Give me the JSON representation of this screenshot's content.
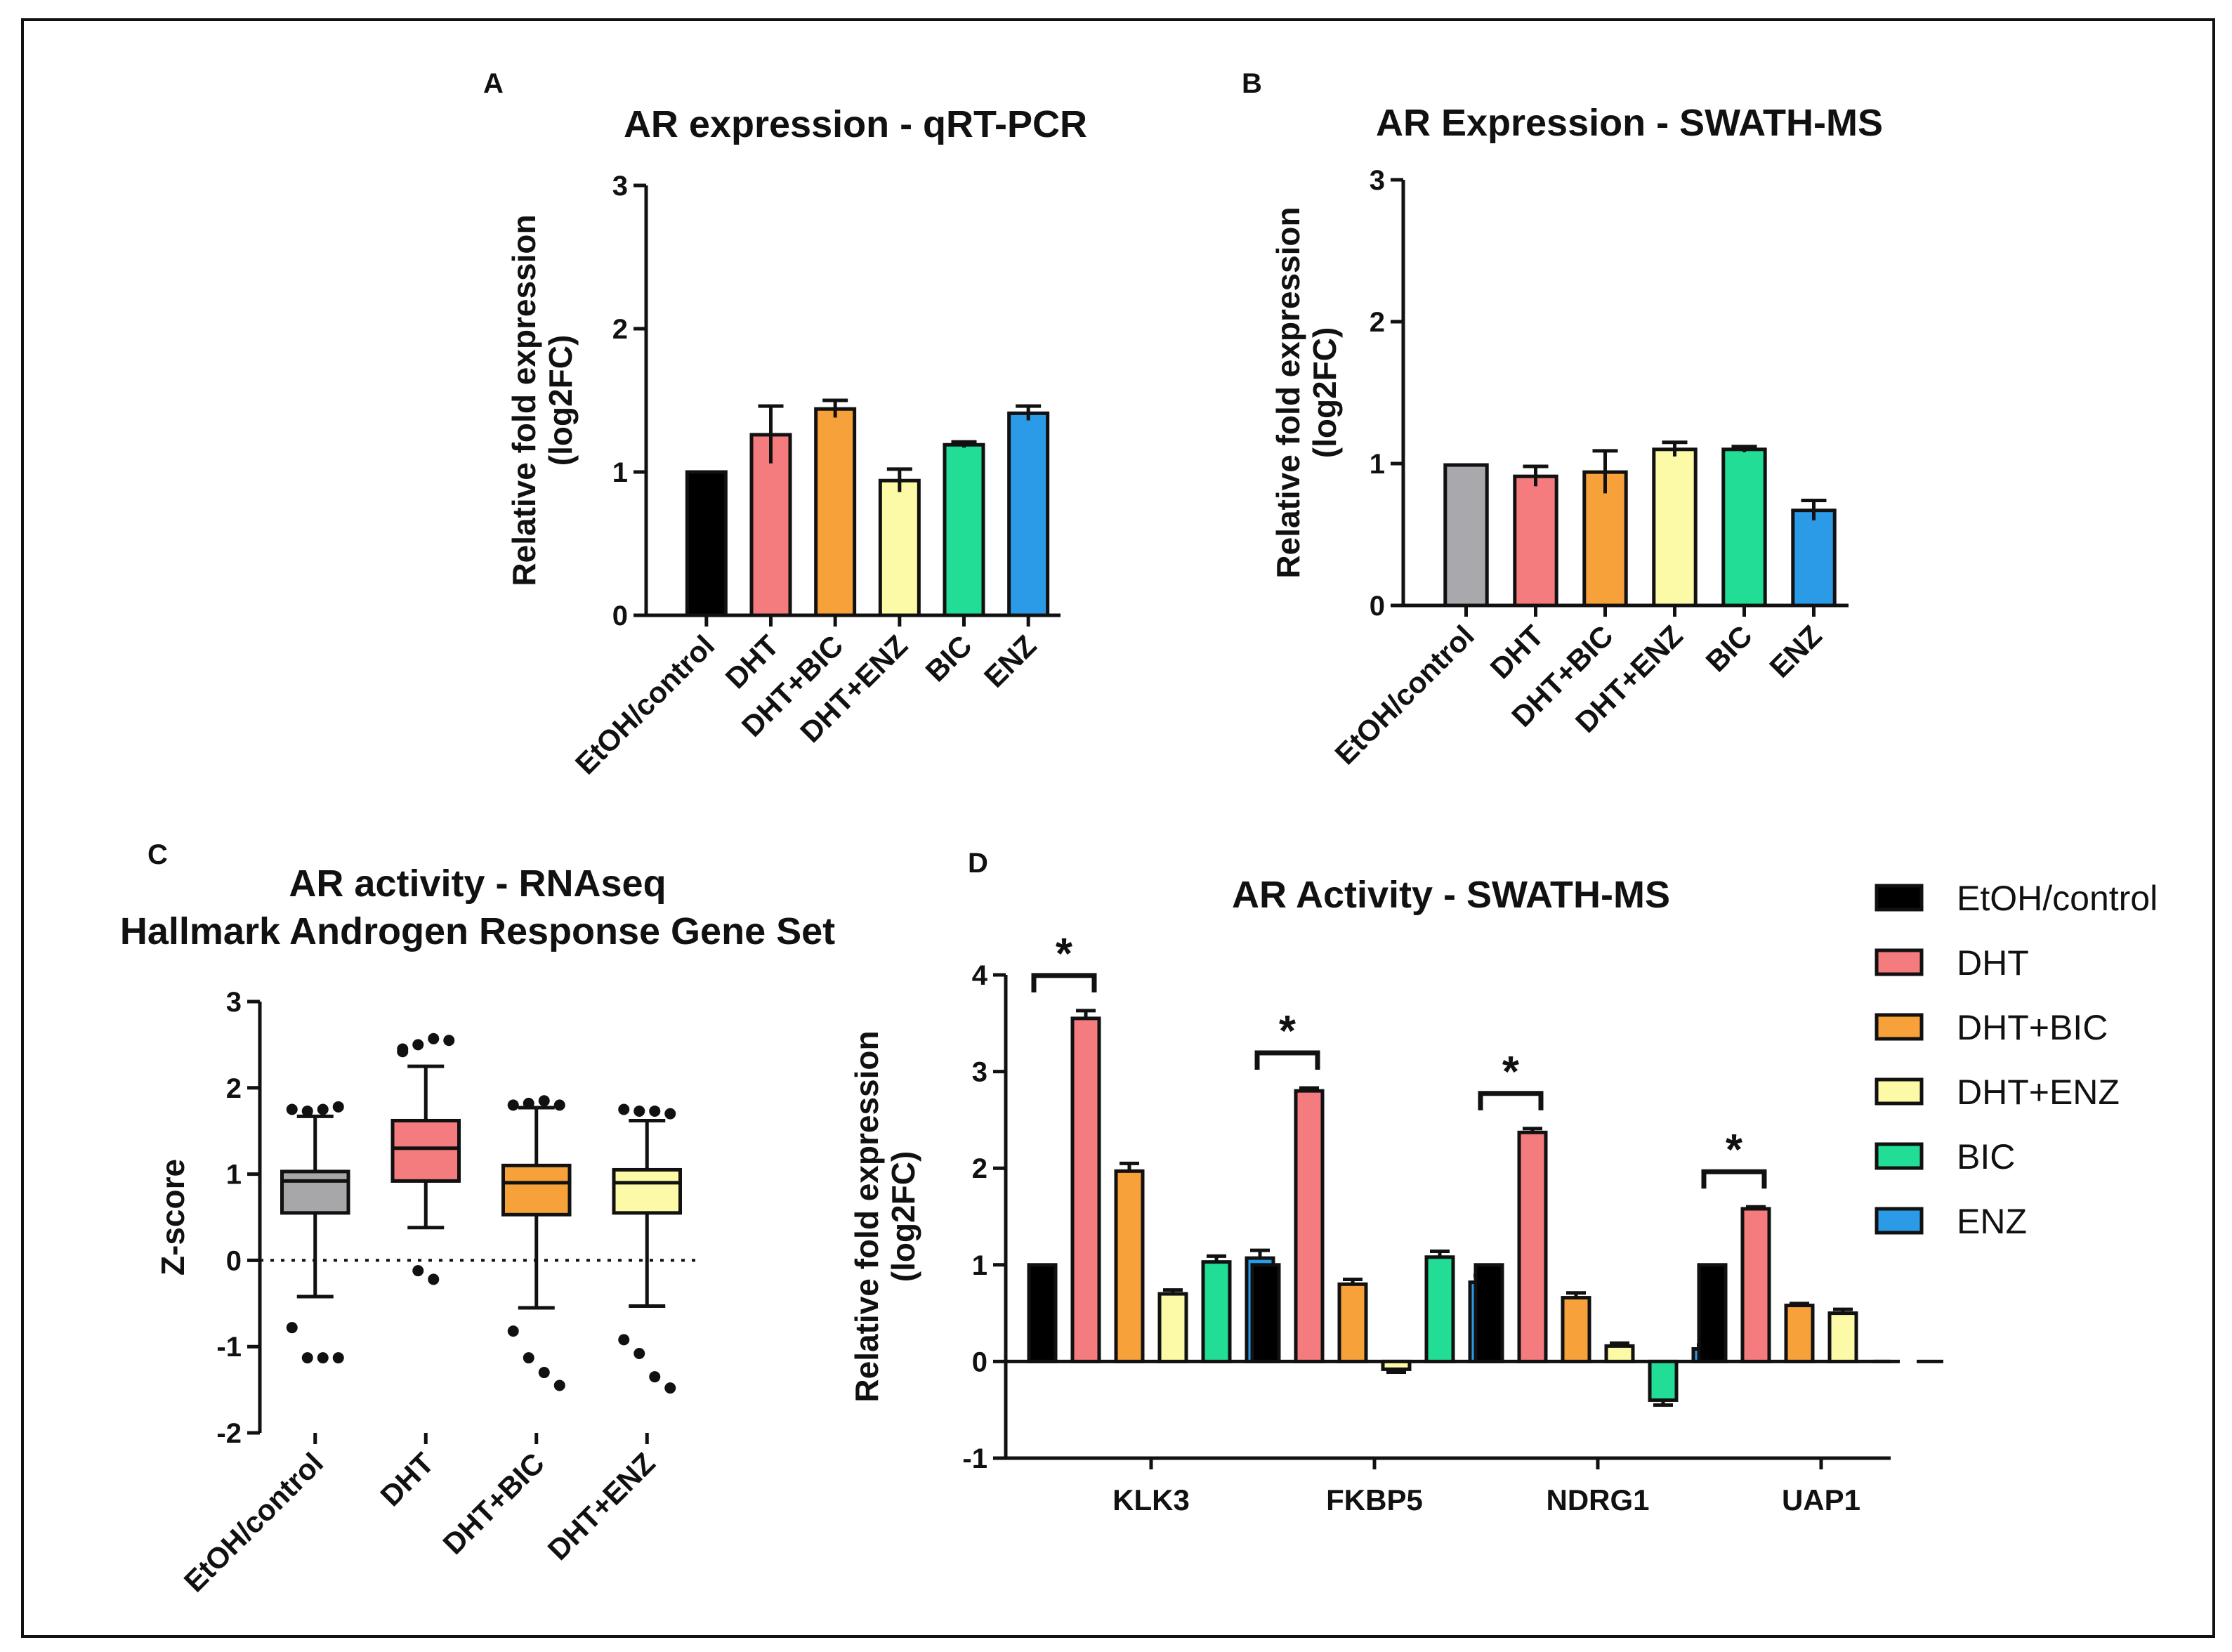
{
  "colors": {
    "EtOH/control": "#000000",
    "EtOH/control_B": "#a8a8ad",
    "DHT": "#f47b7e",
    "DHT+BIC": "#f7a13a",
    "DHT+ENZ": "#fcfaa6",
    "BIC": "#22dd95",
    "ENZ": "#2b9be8",
    "box_control": "#a7a7aa"
  },
  "chart_data": [
    {
      "panel": "A",
      "type": "bar",
      "title": "AR expression - qRT-PCR",
      "ylabel_lines": [
        "Relative fold expression",
        "(log2FC)"
      ],
      "categories": [
        "EtOH/control",
        "DHT",
        "DHT+BIC",
        "DHT+ENZ",
        "BIC",
        "ENZ"
      ],
      "values": [
        1.0,
        1.26,
        1.44,
        0.94,
        1.19,
        1.41
      ],
      "errors": [
        0.0,
        0.2,
        0.06,
        0.08,
        0.02,
        0.05
      ],
      "yticks": [
        0,
        1,
        2,
        3
      ],
      "ylim": [
        0,
        3
      ]
    },
    {
      "panel": "B",
      "type": "bar",
      "title": "AR Expression - SWATH-MS",
      "ylabel_lines": [
        "Relative fold expression",
        "(log2FC)"
      ],
      "categories": [
        "EtOH/control",
        "DHT",
        "DHT+BIC",
        "DHT+ENZ",
        "BIC",
        "ENZ"
      ],
      "values": [
        0.99,
        0.91,
        0.94,
        1.1,
        1.1,
        0.67
      ],
      "errors": [
        0.0,
        0.07,
        0.15,
        0.05,
        0.02,
        0.07
      ],
      "yticks": [
        0,
        1,
        2,
        3
      ],
      "ylim": [
        0,
        3
      ]
    },
    {
      "panel": "C",
      "type": "box",
      "title_lines": [
        "AR activity - RNAseq",
        "Hallmark Androgen Response Gene Set"
      ],
      "ylabel": "Z-score",
      "categories": [
        "EtOH/control",
        "DHT",
        "DHT+BIC",
        "DHT+ENZ"
      ],
      "boxes": [
        {
          "q1": 0.55,
          "median": 0.92,
          "q3": 1.03,
          "wlo": -0.42,
          "whi": 1.67,
          "outliers": [
            1.75,
            1.73,
            1.75,
            1.78,
            -0.78,
            -1.13,
            -1.13,
            -1.13
          ]
        },
        {
          "q1": 0.92,
          "median": 1.3,
          "q3": 1.62,
          "wlo": 0.38,
          "whi": 2.25,
          "outliers": [
            2.42,
            2.5,
            2.57,
            2.55,
            2.45,
            -0.12,
            -0.22
          ]
        },
        {
          "q1": 0.53,
          "median": 0.9,
          "q3": 1.1,
          "wlo": -0.55,
          "whi": 1.77,
          "outliers": [
            1.8,
            1.82,
            1.85,
            1.8,
            -0.82,
            -1.13,
            -1.3,
            -1.45
          ]
        },
        {
          "q1": 0.55,
          "median": 0.9,
          "q3": 1.05,
          "wlo": -0.53,
          "whi": 1.62,
          "outliers": [
            1.75,
            1.73,
            1.73,
            1.7,
            -0.92,
            -1.08,
            -1.35,
            -1.48
          ]
        }
      ],
      "yticks": [
        -2,
        -1,
        0,
        1,
        2,
        3
      ],
      "ylim": [
        -2,
        3
      ]
    },
    {
      "panel": "D",
      "type": "bar",
      "title": "AR Activity - SWATH-MS",
      "ylabel_lines": [
        "Relative fold expression",
        "(log2FC)"
      ],
      "categories": [
        "KLK3",
        "FKBP5",
        "NDRG1",
        "UAP1"
      ],
      "series": [
        {
          "name": "EtOH/control",
          "values": [
            1.0,
            1.0,
            1.0,
            1.0
          ],
          "errors": [
            0,
            0,
            0,
            0
          ]
        },
        {
          "name": "DHT",
          "values": [
            3.55,
            2.8,
            2.37,
            1.58
          ],
          "errors": [
            0.08,
            0.03,
            0.04,
            0.02
          ]
        },
        {
          "name": "DHT+BIC",
          "values": [
            1.97,
            0.8,
            0.66,
            0.58
          ],
          "errors": [
            0.08,
            0.05,
            0.05,
            0.02
          ]
        },
        {
          "name": "DHT+ENZ",
          "values": [
            0.7,
            -0.08,
            0.16,
            0.5
          ],
          "errors": [
            0.04,
            0.03,
            0.03,
            0.04
          ]
        },
        {
          "name": "BIC",
          "values": [
            1.03,
            1.08,
            -0.4,
            0
          ],
          "errors": [
            0.06,
            0.06,
            0.05,
            0
          ]
        },
        {
          "name": "ENZ",
          "values": [
            1.07,
            0.82,
            0.13,
            0
          ],
          "errors": [
            0.08,
            0.07,
            0.04,
            0
          ]
        }
      ],
      "significance": [
        "*",
        "*",
        "*",
        "*"
      ],
      "yticks": [
        -1,
        0,
        1,
        2,
        3,
        4
      ],
      "ylim": [
        -1,
        4
      ],
      "legend_position": "right"
    }
  ],
  "labels": {
    "panel_a": "A",
    "panel_b": "B",
    "panel_c": "C",
    "panel_d": "D"
  }
}
